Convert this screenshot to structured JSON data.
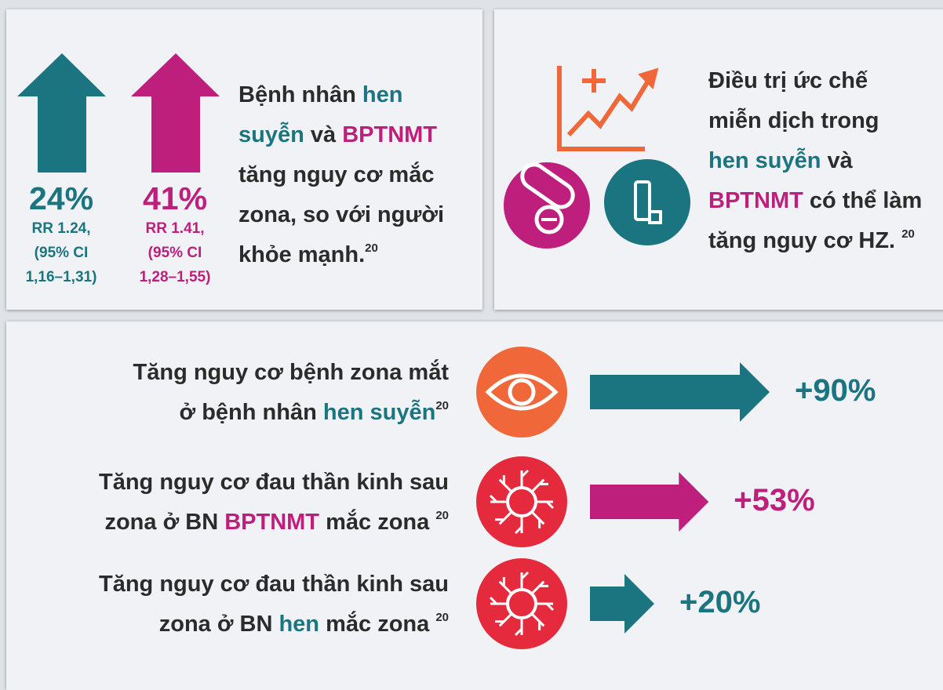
{
  "panel1": {
    "stats": [
      {
        "percent": "24%",
        "rr": "RR 1.24,",
        "ci": "(95% CI",
        "range": "1,16–1,31)",
        "color": "#1b7580"
      },
      {
        "percent": "41%",
        "rr": "RR 1.41,",
        "ci": "(95% CI",
        "range": "1,28–1,55)",
        "color": "#be1f7c"
      }
    ],
    "lines": [
      [
        {
          "text": "Bệnh nhân "
        },
        {
          "text": "hen",
          "color": "#1b7580"
        }
      ],
      [
        {
          "text": "suyễn",
          "color": "#1b7580"
        },
        {
          "text": " và "
        },
        {
          "text": "BPTNMT",
          "color": "#be1f7c"
        }
      ],
      [
        {
          "text": "tăng nguy cơ mắc"
        }
      ],
      [
        {
          "text": "zona, so với người"
        }
      ],
      [
        {
          "text": "khỏe mạnh."
        }
      ]
    ],
    "ref": "20"
  },
  "panel2": {
    "lines": [
      [
        {
          "text": "Điều trị ức chế"
        }
      ],
      [
        {
          "text": "miễn dịch trong"
        }
      ],
      [
        {
          "text": "hen suyễn",
          "color": "#1b7580"
        },
        {
          "text": " và"
        }
      ],
      [
        {
          "text": "BPTNMT",
          "color": "#be1f7c"
        },
        {
          "text": " có thể làm"
        }
      ],
      [
        {
          "text": "tăng nguy cơ HZ. "
        }
      ]
    ],
    "ref": "20"
  },
  "panel3": {
    "rows": [
      {
        "lines": [
          [
            {
              "text": "Tăng nguy cơ bệnh zona mắt"
            }
          ],
          [
            {
              "text": "ở bệnh nhân "
            },
            {
              "text": "hen suyễn",
              "color": "#1b7580"
            }
          ]
        ],
        "ref": "20",
        "icon": "eye",
        "icon_color": "#f0683a",
        "value": 90,
        "value_label": "+90%",
        "color": "#1b7580"
      },
      {
        "lines": [
          [
            {
              "text": "Tăng nguy cơ đau thần kinh sau"
            }
          ],
          [
            {
              "text": "zona ở BN "
            },
            {
              "text": "BPTNMT",
              "color": "#be1f7c"
            },
            {
              "text": " mắc zona "
            }
          ]
        ],
        "ref": "20",
        "icon": "nerve",
        "icon_color": "#e52a3d",
        "value": 53,
        "value_label": "+53%",
        "color": "#be1f7c"
      },
      {
        "lines": [
          [
            {
              "text": "Tăng nguy cơ đau thần kinh sau"
            }
          ],
          [
            {
              "text": "zona ở BN "
            },
            {
              "text": "hen",
              "color": "#1b7580"
            },
            {
              "text": " mắc zona "
            }
          ]
        ],
        "ref": "20",
        "icon": "nerve",
        "icon_color": "#e52a3d",
        "value": 20,
        "value_label": "+20%",
        "color": "#1b7580"
      }
    ]
  }
}
